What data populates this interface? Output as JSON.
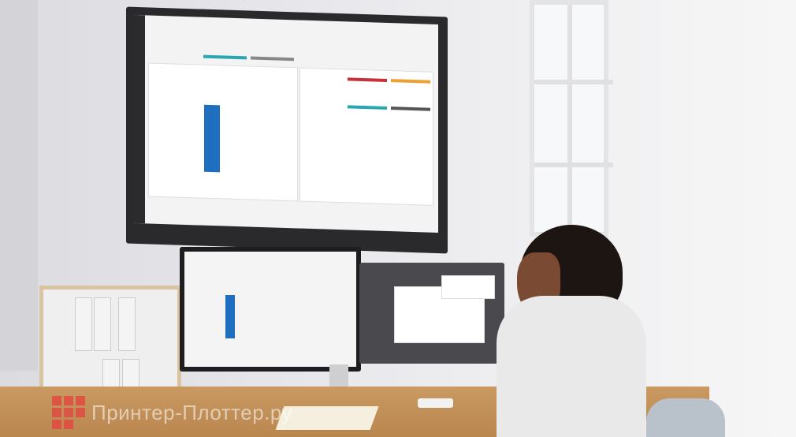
{
  "watermark": {
    "text": "Принтер-Плоттер.ру",
    "logo": "red-squares-logo"
  },
  "colors": {
    "chart_bar": "#1f6fc0",
    "accent_teal": "#2aa6b0",
    "accent_red": "#c8303a",
    "accent_orange": "#f0a030",
    "wall": "#e9e9ec",
    "desk": "#c99a62"
  }
}
